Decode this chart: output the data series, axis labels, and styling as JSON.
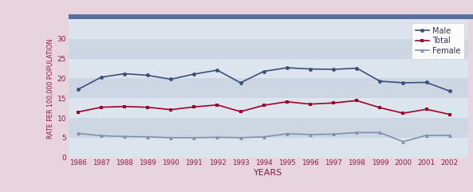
{
  "years": [
    1986,
    1987,
    1988,
    1989,
    1990,
    1991,
    1992,
    1993,
    1994,
    1995,
    1996,
    1997,
    1998,
    1999,
    2000,
    2001,
    2002
  ],
  "male": [
    17.2,
    20.3,
    21.2,
    20.8,
    19.8,
    21.1,
    22.1,
    18.9,
    21.8,
    22.7,
    22.4,
    22.3,
    22.6,
    19.3,
    18.9,
    19.0,
    16.8
  ],
  "total": [
    11.5,
    12.7,
    12.9,
    12.7,
    12.1,
    12.8,
    13.3,
    11.6,
    13.2,
    14.1,
    13.5,
    13.8,
    14.4,
    12.6,
    11.2,
    12.2,
    10.9
  ],
  "female": [
    6.1,
    5.5,
    5.3,
    5.2,
    5.0,
    5.0,
    5.1,
    5.0,
    5.2,
    6.0,
    5.8,
    5.9,
    6.3,
    6.3,
    4.0,
    5.6,
    5.6
  ],
  "male_color": "#3a4f7a",
  "total_color": "#a0002a",
  "female_color": "#8090a8",
  "plot_bg_light": "#dce3ec",
  "plot_bg_dark": "#c8d2e0",
  "left_panel_color": "#e8d0d8",
  "top_bar_color": "#5a6e9a",
  "bottom_panel_color": "#f0dde4",
  "ylabel": "RATE PER 100,000 POPULATION",
  "xlabel": "YEARS",
  "ylim": [
    0,
    35
  ],
  "yticks": [
    0,
    5,
    10,
    15,
    20,
    25,
    30
  ],
  "band_colors": [
    "#dce4ed",
    "#cdd6e3",
    "#dce4ed",
    "#cdd6e3",
    "#dce4ed",
    "#cdd6e3",
    "#dce4ed"
  ]
}
